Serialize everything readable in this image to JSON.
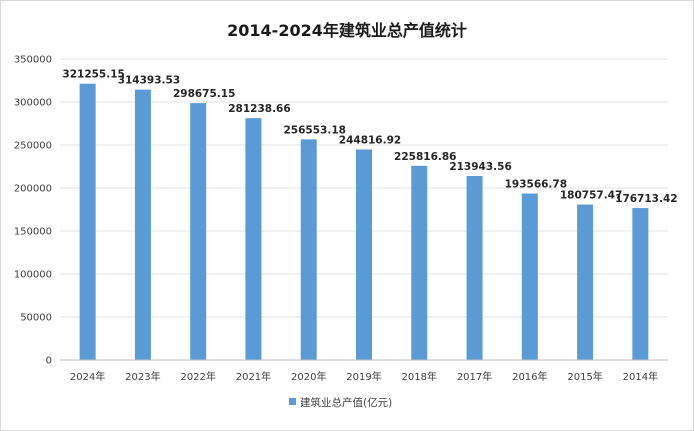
{
  "chart_data": {
    "type": "bar",
    "title": "2014-2024年建筑业总产值统计",
    "categories": [
      "2024年",
      "2023年",
      "2022年",
      "2021年",
      "2020年",
      "2019年",
      "2018年",
      "2017年",
      "2016年",
      "2015年",
      "2014年"
    ],
    "series": [
      {
        "name": "建筑业总产值(亿元)",
        "values": [
          321255.15,
          314393.53,
          298675.15,
          281238.66,
          256553.18,
          244816.92,
          225816.86,
          213943.56,
          193566.78,
          180757.47,
          176713.42
        ],
        "labels": [
          "321255.15",
          "314393.53",
          "298675.15",
          "281238.66",
          "256553.18",
          "244816.92",
          "225816.86",
          "213943.56",
          "193566.78",
          "180757.47",
          "176713.42"
        ]
      }
    ],
    "ylim": [
      0,
      350000
    ],
    "yticks": [
      "0",
      "50000",
      "100000",
      "150000",
      "200000",
      "250000",
      "300000",
      "350000"
    ],
    "grid": true,
    "legend_position": "bottom",
    "bar_color": "#5b9bd5"
  }
}
